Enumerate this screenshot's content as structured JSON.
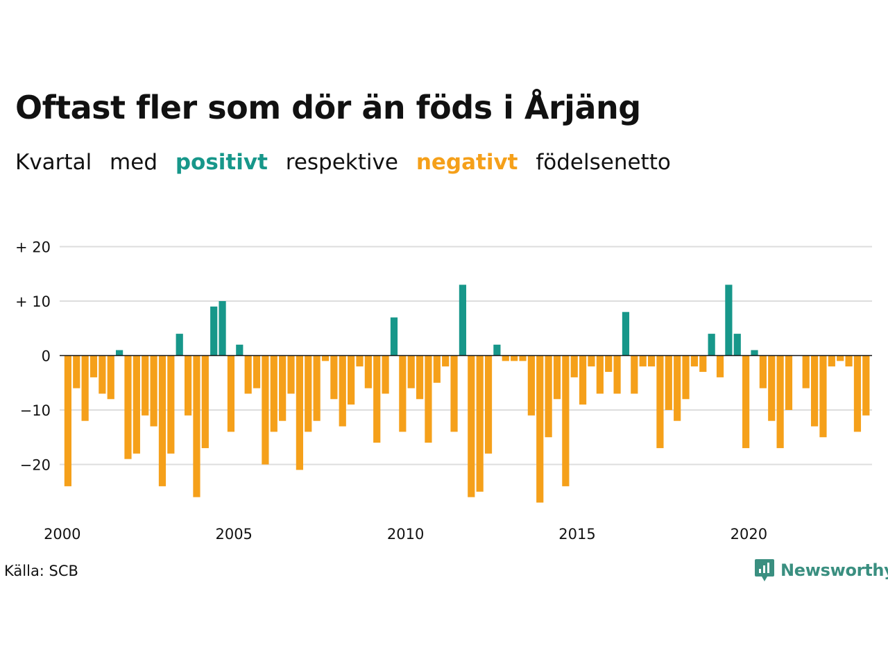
{
  "title": "Oftast fler som dör än föds i Årjäng",
  "subtitle": {
    "part1": "Kvartal",
    "part2": "med",
    "positive_word": "positivt",
    "part3": "respektive",
    "negative_word": "negativt",
    "part4": "födelsenetto"
  },
  "source": "Källa: SCB",
  "logo_text": "Newsworthy",
  "colors": {
    "positive": "#17978a",
    "negative": "#f5a01a",
    "grid": "#dddddd",
    "text": "#111111",
    "logo": "#3a8f80"
  },
  "chart_data": {
    "type": "bar",
    "x_start": 2000,
    "x_frequency": "quarterly",
    "x_ticks": [
      2000,
      2005,
      2010,
      2015,
      2020
    ],
    "y_ticks": [
      20,
      10,
      0,
      -10,
      -20
    ],
    "y_tick_labels": [
      "+ 20",
      "+ 10",
      "0",
      "−10",
      "−20"
    ],
    "ylim": [
      -29,
      22
    ],
    "grid": true,
    "values": [
      -24,
      -6,
      -12,
      -4,
      -7,
      -8,
      1,
      -19,
      -18,
      -11,
      -13,
      -24,
      -18,
      4,
      -11,
      -26,
      -17,
      9,
      10,
      -14,
      2,
      -7,
      -6,
      -20,
      -14,
      -12,
      -7,
      -21,
      -14,
      -12,
      -1,
      -8,
      -13,
      -9,
      -2,
      -6,
      -16,
      -7,
      7,
      -14,
      -6,
      -8,
      -16,
      -5,
      -2,
      -14,
      13,
      -26,
      -25,
      -18,
      2,
      -1,
      -1,
      -1,
      -11,
      -27,
      -15,
      -8,
      -24,
      -4,
      -9,
      -2,
      -7,
      -3,
      -7,
      8,
      -7,
      -2,
      -2,
      -17,
      -10,
      -12,
      -8,
      -2,
      -3,
      4,
      -4,
      13,
      4,
      -17,
      1,
      -6,
      -12,
      -17,
      -10,
      0,
      -6,
      -13,
      -15,
      -2,
      -1,
      -2,
      -14,
      -11
    ]
  }
}
